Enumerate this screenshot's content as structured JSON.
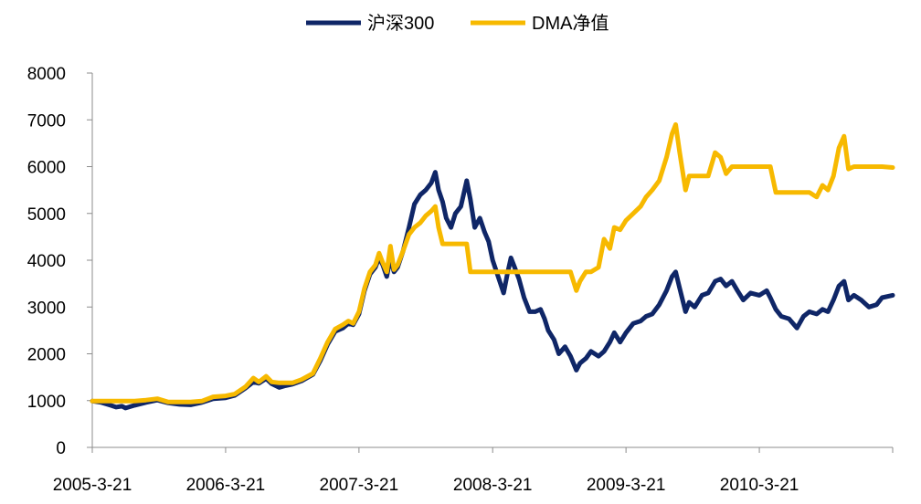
{
  "chart_data": {
    "type": "line",
    "title": "",
    "xlabel": "",
    "ylabel": "",
    "ylim": [
      0,
      8000
    ],
    "yticks": [
      0,
      1000,
      2000,
      3000,
      4000,
      5000,
      6000,
      7000,
      8000
    ],
    "xlim": [
      "2005-03-21",
      "2011-03-21"
    ],
    "xtick_labels": [
      "2005-3-21",
      "2006-3-21",
      "2007-3-21",
      "2008-3-21",
      "2009-3-21",
      "2010-3-21"
    ],
    "xtick_dates": [
      "2005-03-21",
      "2006-03-21",
      "2007-03-21",
      "2008-03-21",
      "2009-03-21",
      "2010-03-21"
    ],
    "legend_position": "top-center",
    "grid": false,
    "series": [
      {
        "name": "沪深300",
        "color": "#0f2667",
        "points": [
          [
            "2005-03-21",
            990
          ],
          [
            "2005-04-15",
            960
          ],
          [
            "2005-05-10",
            900
          ],
          [
            "2005-05-25",
            860
          ],
          [
            "2005-06-10",
            880
          ],
          [
            "2005-06-20",
            840
          ],
          [
            "2005-07-15",
            900
          ],
          [
            "2005-08-15",
            960
          ],
          [
            "2005-09-15",
            1010
          ],
          [
            "2005-10-15",
            950
          ],
          [
            "2005-11-15",
            920
          ],
          [
            "2005-12-15",
            910
          ],
          [
            "2006-01-15",
            960
          ],
          [
            "2006-02-15",
            1040
          ],
          [
            "2006-03-21",
            1060
          ],
          [
            "2006-04-15",
            1110
          ],
          [
            "2006-05-15",
            1270
          ],
          [
            "2006-06-05",
            1400
          ],
          [
            "2006-06-20",
            1370
          ],
          [
            "2006-07-10",
            1470
          ],
          [
            "2006-07-25",
            1360
          ],
          [
            "2006-08-15",
            1280
          ],
          [
            "2006-09-01",
            1320
          ],
          [
            "2006-09-20",
            1350
          ],
          [
            "2006-10-15",
            1420
          ],
          [
            "2006-11-15",
            1560
          ],
          [
            "2006-12-05",
            1850
          ],
          [
            "2006-12-25",
            2200
          ],
          [
            "2007-01-15",
            2480
          ],
          [
            "2007-02-05",
            2550
          ],
          [
            "2007-02-20",
            2650
          ],
          [
            "2007-03-05",
            2620
          ],
          [
            "2007-03-21",
            2850
          ],
          [
            "2007-04-05",
            3350
          ],
          [
            "2007-04-20",
            3700
          ],
          [
            "2007-05-05",
            3850
          ],
          [
            "2007-05-15",
            4050
          ],
          [
            "2007-05-25",
            3900
          ],
          [
            "2007-06-05",
            3650
          ],
          [
            "2007-06-15",
            4050
          ],
          [
            "2007-06-25",
            3750
          ],
          [
            "2007-07-05",
            3850
          ],
          [
            "2007-07-20",
            4200
          ],
          [
            "2007-08-05",
            4700
          ],
          [
            "2007-08-20",
            5200
          ],
          [
            "2007-09-05",
            5400
          ],
          [
            "2007-09-20",
            5500
          ],
          [
            "2007-10-05",
            5650
          ],
          [
            "2007-10-16",
            5880
          ],
          [
            "2007-10-25",
            5500
          ],
          [
            "2007-11-05",
            5250
          ],
          [
            "2007-11-15",
            4900
          ],
          [
            "2007-11-28",
            4700
          ],
          [
            "2007-12-10",
            5000
          ],
          [
            "2007-12-25",
            5150
          ],
          [
            "2008-01-10",
            5700
          ],
          [
            "2008-01-20",
            5300
          ],
          [
            "2008-02-01",
            4700
          ],
          [
            "2008-02-15",
            4900
          ],
          [
            "2008-02-28",
            4600
          ],
          [
            "2008-03-10",
            4400
          ],
          [
            "2008-03-21",
            4000
          ],
          [
            "2008-04-05",
            3650
          ],
          [
            "2008-04-20",
            3300
          ],
          [
            "2008-04-30",
            3700
          ],
          [
            "2008-05-10",
            4050
          ],
          [
            "2008-05-20",
            3850
          ],
          [
            "2008-06-01",
            3600
          ],
          [
            "2008-06-15",
            3200
          ],
          [
            "2008-06-30",
            2900
          ],
          [
            "2008-07-15",
            2900
          ],
          [
            "2008-07-30",
            2950
          ],
          [
            "2008-08-10",
            2750
          ],
          [
            "2008-08-20",
            2500
          ],
          [
            "2008-09-05",
            2300
          ],
          [
            "2008-09-18",
            2000
          ],
          [
            "2008-10-05",
            2150
          ],
          [
            "2008-10-20",
            1950
          ],
          [
            "2008-11-05",
            1650
          ],
          [
            "2008-11-15",
            1800
          ],
          [
            "2008-12-01",
            1900
          ],
          [
            "2008-12-15",
            2050
          ],
          [
            "2009-01-05",
            1950
          ],
          [
            "2009-01-20",
            2050
          ],
          [
            "2009-02-05",
            2250
          ],
          [
            "2009-02-17",
            2450
          ],
          [
            "2009-03-05",
            2250
          ],
          [
            "2009-03-21",
            2450
          ],
          [
            "2009-04-10",
            2650
          ],
          [
            "2009-04-30",
            2700
          ],
          [
            "2009-05-15",
            2800
          ],
          [
            "2009-06-01",
            2850
          ],
          [
            "2009-06-20",
            3050
          ],
          [
            "2009-07-10",
            3350
          ],
          [
            "2009-07-25",
            3650
          ],
          [
            "2009-08-04",
            3750
          ],
          [
            "2009-08-15",
            3400
          ],
          [
            "2009-08-31",
            2900
          ],
          [
            "2009-09-10",
            3100
          ],
          [
            "2009-09-25",
            3000
          ],
          [
            "2009-10-15",
            3250
          ],
          [
            "2009-11-01",
            3300
          ],
          [
            "2009-11-20",
            3550
          ],
          [
            "2009-12-05",
            3600
          ],
          [
            "2009-12-20",
            3450
          ],
          [
            "2010-01-05",
            3550
          ],
          [
            "2010-01-20",
            3350
          ],
          [
            "2010-02-05",
            3150
          ],
          [
            "2010-02-25",
            3300
          ],
          [
            "2010-03-21",
            3250
          ],
          [
            "2010-04-10",
            3350
          ],
          [
            "2010-04-20",
            3200
          ],
          [
            "2010-05-05",
            2950
          ],
          [
            "2010-05-20",
            2800
          ],
          [
            "2010-06-10",
            2750
          ],
          [
            "2010-07-02",
            2550
          ],
          [
            "2010-07-20",
            2800
          ],
          [
            "2010-08-05",
            2900
          ],
          [
            "2010-08-25",
            2850
          ],
          [
            "2010-09-10",
            2950
          ],
          [
            "2010-09-25",
            2900
          ],
          [
            "2010-10-10",
            3150
          ],
          [
            "2010-10-25",
            3450
          ],
          [
            "2010-11-08",
            3550
          ],
          [
            "2010-11-20",
            3150
          ],
          [
            "2010-12-05",
            3250
          ],
          [
            "2010-12-25",
            3150
          ],
          [
            "2011-01-15",
            3000
          ],
          [
            "2011-02-05",
            3050
          ],
          [
            "2011-02-20",
            3200
          ],
          [
            "2011-03-21",
            3250
          ]
        ]
      },
      {
        "name": "DMA净值",
        "color": "#f7b900",
        "points": [
          [
            "2005-03-21",
            990
          ],
          [
            "2005-04-15",
            990
          ],
          [
            "2005-05-10",
            990
          ],
          [
            "2005-05-25",
            990
          ],
          [
            "2005-06-10",
            990
          ],
          [
            "2005-06-20",
            990
          ],
          [
            "2005-07-15",
            990
          ],
          [
            "2005-08-15",
            1010
          ],
          [
            "2005-09-15",
            1040
          ],
          [
            "2005-10-15",
            970
          ],
          [
            "2005-11-15",
            970
          ],
          [
            "2005-12-15",
            970
          ],
          [
            "2006-01-15",
            990
          ],
          [
            "2006-02-15",
            1080
          ],
          [
            "2006-03-21",
            1100
          ],
          [
            "2006-04-15",
            1140
          ],
          [
            "2006-05-15",
            1300
          ],
          [
            "2006-06-05",
            1480
          ],
          [
            "2006-06-20",
            1400
          ],
          [
            "2006-07-10",
            1520
          ],
          [
            "2006-07-25",
            1400
          ],
          [
            "2006-08-15",
            1380
          ],
          [
            "2006-09-01",
            1380
          ],
          [
            "2006-09-20",
            1380
          ],
          [
            "2006-10-15",
            1450
          ],
          [
            "2006-11-15",
            1580
          ],
          [
            "2006-12-05",
            1900
          ],
          [
            "2006-12-25",
            2250
          ],
          [
            "2007-01-15",
            2530
          ],
          [
            "2007-02-05",
            2620
          ],
          [
            "2007-02-20",
            2700
          ],
          [
            "2007-03-05",
            2650
          ],
          [
            "2007-03-21",
            2900
          ],
          [
            "2007-04-05",
            3400
          ],
          [
            "2007-04-20",
            3750
          ],
          [
            "2007-05-05",
            3900
          ],
          [
            "2007-05-15",
            4150
          ],
          [
            "2007-05-25",
            3950
          ],
          [
            "2007-06-05",
            3750
          ],
          [
            "2007-06-15",
            4300
          ],
          [
            "2007-06-25",
            3800
          ],
          [
            "2007-07-05",
            3900
          ],
          [
            "2007-07-20",
            4200
          ],
          [
            "2007-08-05",
            4550
          ],
          [
            "2007-08-20",
            4700
          ],
          [
            "2007-09-05",
            4800
          ],
          [
            "2007-09-20",
            4950
          ],
          [
            "2007-10-05",
            5050
          ],
          [
            "2007-10-16",
            5150
          ],
          [
            "2007-10-25",
            4700
          ],
          [
            "2007-11-05",
            4350
          ],
          [
            "2007-11-15",
            4350
          ],
          [
            "2007-11-28",
            4350
          ],
          [
            "2007-12-10",
            4350
          ],
          [
            "2007-12-25",
            4350
          ],
          [
            "2008-01-10",
            4350
          ],
          [
            "2008-01-20",
            3750
          ],
          [
            "2008-02-01",
            3750
          ],
          [
            "2008-02-15",
            3750
          ],
          [
            "2008-02-28",
            3750
          ],
          [
            "2008-03-10",
            3750
          ],
          [
            "2008-03-21",
            3750
          ],
          [
            "2008-04-05",
            3750
          ],
          [
            "2008-04-20",
            3750
          ],
          [
            "2008-04-30",
            3750
          ],
          [
            "2008-05-10",
            3750
          ],
          [
            "2008-05-20",
            3750
          ],
          [
            "2008-06-01",
            3750
          ],
          [
            "2008-06-15",
            3750
          ],
          [
            "2008-06-30",
            3750
          ],
          [
            "2008-07-15",
            3750
          ],
          [
            "2008-07-30",
            3750
          ],
          [
            "2008-08-10",
            3750
          ],
          [
            "2008-08-20",
            3750
          ],
          [
            "2008-09-05",
            3750
          ],
          [
            "2008-09-18",
            3750
          ],
          [
            "2008-10-05",
            3750
          ],
          [
            "2008-10-20",
            3750
          ],
          [
            "2008-11-05",
            3350
          ],
          [
            "2008-11-15",
            3550
          ],
          [
            "2008-12-01",
            3750
          ],
          [
            "2008-12-15",
            3750
          ],
          [
            "2009-01-05",
            3850
          ],
          [
            "2009-01-20",
            4450
          ],
          [
            "2009-02-05",
            4250
          ],
          [
            "2009-02-17",
            4700
          ],
          [
            "2009-03-05",
            4650
          ],
          [
            "2009-03-21",
            4850
          ],
          [
            "2009-04-10",
            5000
          ],
          [
            "2009-04-30",
            5150
          ],
          [
            "2009-05-15",
            5350
          ],
          [
            "2009-06-01",
            5500
          ],
          [
            "2009-06-20",
            5700
          ],
          [
            "2009-07-10",
            6200
          ],
          [
            "2009-07-25",
            6700
          ],
          [
            "2009-08-04",
            6900
          ],
          [
            "2009-08-15",
            6300
          ],
          [
            "2009-08-31",
            5500
          ],
          [
            "2009-09-10",
            5800
          ],
          [
            "2009-09-25",
            5800
          ],
          [
            "2009-10-15",
            5800
          ],
          [
            "2009-11-01",
            5800
          ],
          [
            "2009-11-20",
            6300
          ],
          [
            "2009-12-05",
            6200
          ],
          [
            "2009-12-20",
            5850
          ],
          [
            "2010-01-05",
            6000
          ],
          [
            "2010-01-20",
            6000
          ],
          [
            "2010-02-05",
            6000
          ],
          [
            "2010-02-25",
            6000
          ],
          [
            "2010-03-21",
            6000
          ],
          [
            "2010-04-10",
            6000
          ],
          [
            "2010-04-20",
            6000
          ],
          [
            "2010-05-05",
            5450
          ],
          [
            "2010-05-20",
            5450
          ],
          [
            "2010-06-10",
            5450
          ],
          [
            "2010-07-02",
            5450
          ],
          [
            "2010-07-20",
            5450
          ],
          [
            "2010-08-05",
            5450
          ],
          [
            "2010-08-25",
            5350
          ],
          [
            "2010-09-10",
            5600
          ],
          [
            "2010-09-25",
            5500
          ],
          [
            "2010-10-10",
            5800
          ],
          [
            "2010-10-25",
            6400
          ],
          [
            "2010-11-08",
            6650
          ],
          [
            "2010-11-20",
            5950
          ],
          [
            "2010-12-05",
            6000
          ],
          [
            "2010-12-25",
            6000
          ],
          [
            "2011-01-15",
            6000
          ],
          [
            "2011-02-05",
            6000
          ],
          [
            "2011-02-20",
            6000
          ],
          [
            "2011-03-21",
            5980
          ]
        ]
      }
    ]
  }
}
